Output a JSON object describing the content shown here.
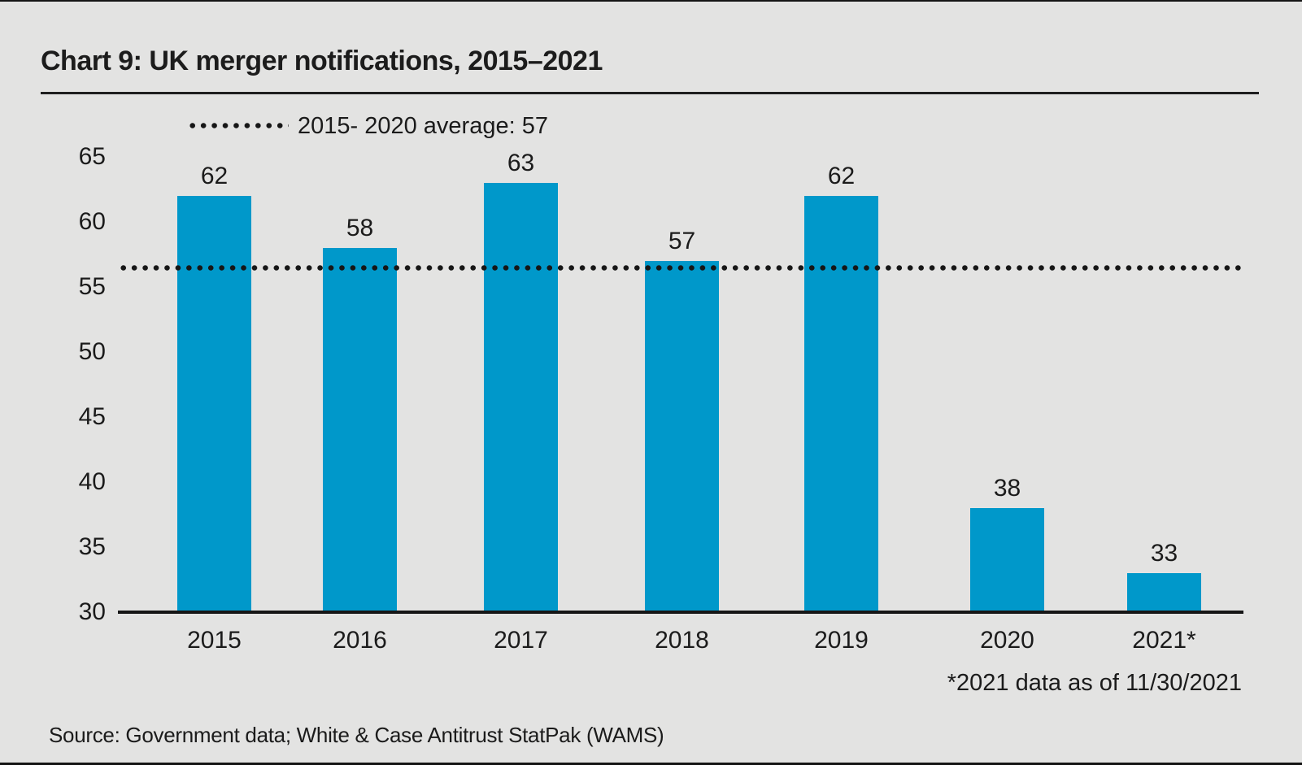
{
  "colors": {
    "background": "#e3e3e2",
    "bar": "#0098ca",
    "text": "#1b1b1b",
    "line": "#161616"
  },
  "chart_data": {
    "type": "bar",
    "title": "Chart 9: UK merger notifications, 2015–2021",
    "categories": [
      "2015",
      "2016",
      "2017",
      "2018",
      "2019",
      "2020",
      "2021*"
    ],
    "values": [
      62,
      58,
      63,
      57,
      62,
      38,
      33
    ],
    "xlabel": "",
    "ylabel": "",
    "ylim": [
      30,
      65
    ],
    "yticks": [
      65,
      60,
      55,
      50,
      45,
      40,
      35,
      30
    ],
    "grid": false,
    "bar_color": "#0098ca",
    "value_labels_shown": true,
    "average_line": {
      "value": 57,
      "label": "2015- 2020 average: 57",
      "style": "dotted"
    },
    "legend_position": "top-left above plot",
    "footnote": "*2021 data as of 11/30/2021",
    "source": "Source: Government data; White & Case Antitrust StatPak (WAMS)"
  }
}
